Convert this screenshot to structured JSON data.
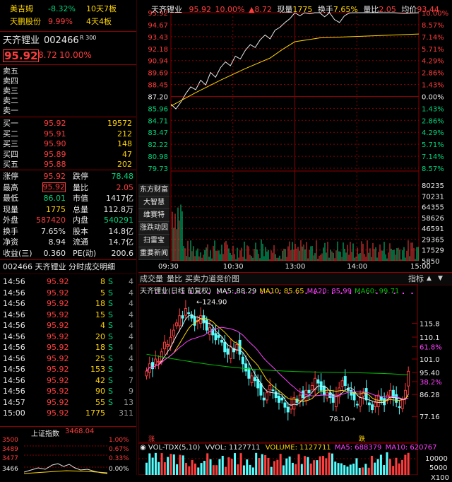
{
  "watch": [
    {
      "name": "美吉姆",
      "pct": "-8.32%",
      "tag": "10天7板"
    },
    {
      "name": "天鹏股份",
      "pct": "9.99%",
      "tag": "4天4板"
    }
  ],
  "stock": {
    "name": "天齐锂业",
    "code": "002466",
    "badge": "R 300",
    "price": "95.92",
    "change": "8.72",
    "pct": "10.00%"
  },
  "asks": [
    "卖五",
    "卖四",
    "卖三",
    "卖二",
    "卖一"
  ],
  "bids": [
    {
      "label": "买一",
      "price": "95.92",
      "vol": "19572"
    },
    {
      "label": "买二",
      "price": "95.91",
      "vol": "212"
    },
    {
      "label": "买三",
      "price": "95.90",
      "vol": "148"
    },
    {
      "label": "买四",
      "price": "95.89",
      "vol": "47"
    },
    {
      "label": "买五",
      "price": "95.88",
      "vol": "202"
    }
  ],
  "stats": [
    {
      "l1": "涨停",
      "v1": "95.92",
      "l2": "跌停",
      "v2": "78.48"
    },
    {
      "l1": "最高",
      "v1": "95.92",
      "l2": "量比",
      "v2": "2.05"
    },
    {
      "l1": "最低",
      "v1": "86.01",
      "l2": "市值",
      "v2": "1417亿"
    },
    {
      "l1": "现量",
      "v1": "1775",
      "l2": "总量",
      "v2": "112.8万"
    },
    {
      "l1": "外盘",
      "v1": "587420",
      "l2": "内盘",
      "v2": "540291"
    },
    {
      "l1": "换手",
      "v1": "7.65%",
      "l2": "股本",
      "v2": "14.8亿"
    },
    {
      "l1": "净资",
      "v1": "8.94",
      "l2": "流通",
      "v2": "14.7亿"
    },
    {
      "l1": "收益(三)",
      "v1": "0.360",
      "l2": "PE(动)",
      "v2": "200.6"
    }
  ],
  "ticks_title": "002466 天齐锂业  分时成交明细",
  "ticks": [
    {
      "t": "14:56",
      "p": "95.92",
      "v": "8",
      "d": "S",
      "n": "4"
    },
    {
      "t": "14:56",
      "p": "95.92",
      "v": "5",
      "d": "S",
      "n": "4"
    },
    {
      "t": "14:56",
      "p": "95.92",
      "v": "18",
      "d": "S",
      "n": "4"
    },
    {
      "t": "14:56",
      "p": "95.92",
      "v": "15",
      "d": "S",
      "n": "4"
    },
    {
      "t": "14:56",
      "p": "95.92",
      "v": "4",
      "d": "S",
      "n": "4"
    },
    {
      "t": "14:56",
      "p": "95.92",
      "v": "20",
      "d": "S",
      "n": "4"
    },
    {
      "t": "14:56",
      "p": "95.92",
      "v": "18",
      "d": "S",
      "n": "4"
    },
    {
      "t": "14:56",
      "p": "95.92",
      "v": "25",
      "d": "S",
      "n": "4"
    },
    {
      "t": "14:56",
      "p": "95.92",
      "v": "153",
      "d": "S",
      "n": "4"
    },
    {
      "t": "14:56",
      "p": "95.92",
      "v": "42",
      "d": "S",
      "n": "7"
    },
    {
      "t": "14:56",
      "p": "95.92",
      "v": "90",
      "d": "S",
      "n": "9"
    },
    {
      "t": "14:57",
      "p": "95.92",
      "v": "55",
      "d": "S",
      "n": "13"
    },
    {
      "t": "15:00",
      "p": "95.92",
      "v": "1775",
      "d": "",
      "n": "311"
    }
  ],
  "index": {
    "name": "上证指数",
    "value": "3468.04",
    "levels": [
      "3500",
      "3489",
      "3477",
      "3466"
    ],
    "pcts": [
      "1.00%",
      "0.67%",
      "0.33%",
      "0.00%"
    ]
  },
  "intraday": {
    "header": {
      "name": "天齐锂业",
      "price": "95.92",
      "pct": "10.00%",
      "chg": "▲8.72",
      "vol_label": "现量",
      "vol": "1775",
      "turn_label": "换手",
      "turn": "7.65%",
      "ratio_label": "量比",
      "ratio": "2.05",
      "avg_label": "均价",
      "avg": "93.44"
    },
    "left_axis": [
      "95.92",
      "94.67",
      "93.43",
      "92.18",
      "90.94",
      "89.69",
      "88.45",
      "87.20",
      "85.96",
      "84.71",
      "83.47",
      "82.22",
      "80.98",
      "79.73"
    ],
    "right_axis": [
      "10.00%",
      "8.57%",
      "7.14%",
      "5.71%",
      "4.29%",
      "2.86%",
      "1.43%",
      "0.00%",
      "1.43%",
      "2.86%",
      "4.29%",
      "5.71%",
      "7.14%",
      "8.57%"
    ],
    "vol_axis": [
      "80235",
      "70231",
      "64355",
      "58626",
      "46591",
      "29365",
      "17529",
      "5850"
    ],
    "side_menu": [
      "东方财富",
      "大智慧",
      "维赛特",
      "涨跌动因",
      "扫雷宝",
      "重要新闻"
    ],
    "time_labels": [
      "09:30",
      "10:30",
      "13:00",
      "14:00",
      "15:00"
    ]
  },
  "tabs2": [
    "成交量",
    "量比",
    "买卖力道",
    "竞价图"
  ],
  "tabs2_right": "指标",
  "kline": {
    "title": "天齐锂业(日线 前复权)",
    "ma": [
      {
        "name": "MA5",
        "value": "88.29",
        "color": "#e8e8e8"
      },
      {
        "name": "MA10",
        "value": "85.65",
        "color": "#ffd400"
      },
      {
        "name": "MA20",
        "value": "85.99",
        "color": "#ff40ff"
      },
      {
        "name": "MA60",
        "value": "99.71",
        "color": "#00c000"
      }
    ],
    "high_label": "124.90",
    "low_label": "78.10",
    "right_axis": [
      "115.8",
      "110.1",
      "61.8%",
      "101.0",
      "95.40",
      "38.2%",
      "86.28",
      "77.16"
    ],
    "mark_up": "涨",
    "mark_dn": "跌"
  },
  "vol": {
    "title": "VOL-TDX(5,10)",
    "vvol": "VVOL: 1127711",
    "volume": "VOLUME: 1127711",
    "ma5": "MA5: 688379",
    "ma10": "MA10: 620767",
    "axis": [
      "10000",
      "5000"
    ],
    "scale": "X100"
  },
  "colors": {
    "up": "#ff3c3c",
    "down": "#00d27a",
    "grid": "#8b0000",
    "avg": "#ffd400",
    "price": "#e8e8e8",
    "candle_down": "#54ffff"
  }
}
